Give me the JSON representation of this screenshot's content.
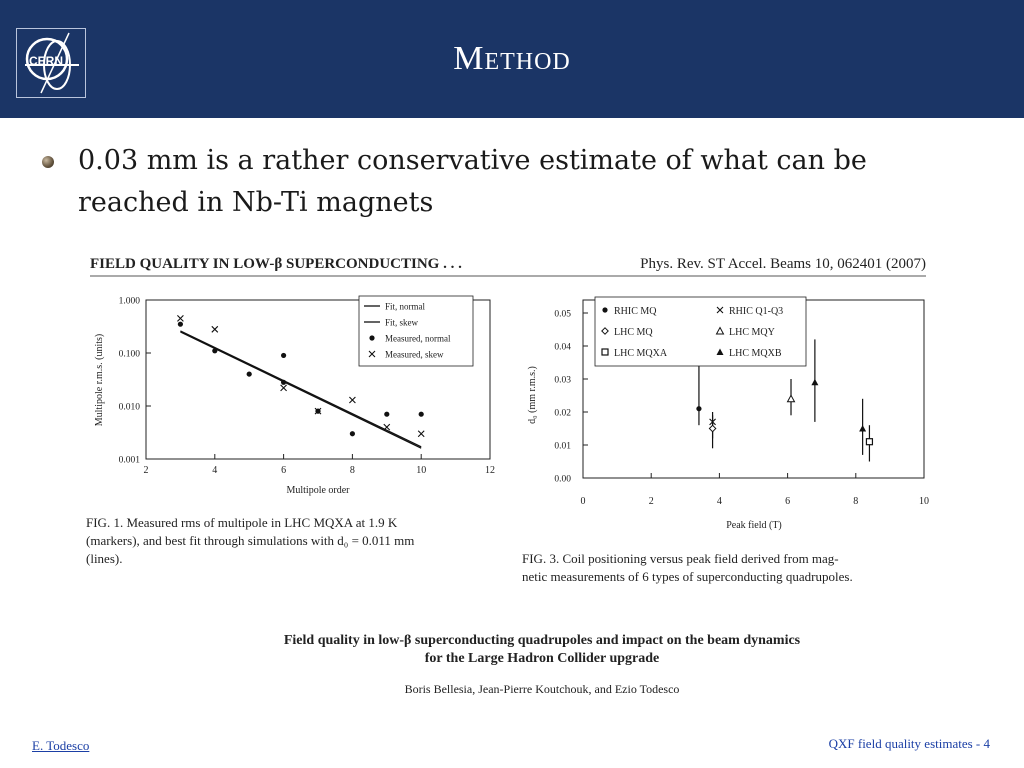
{
  "header": {
    "title": "Method",
    "logo_text": "CERN",
    "background": "#1b3566"
  },
  "bullet": {
    "line1": "0.03 mm is a rather conservative estimate of what can be",
    "line2": "reached in Nb-Ti magnets"
  },
  "paper": {
    "running_head_left": "FIELD QUALITY IN LOW-β SUPERCONDUCTING . . .",
    "running_head_right": "Phys. Rev. ST Accel. Beams 10, 062401 (2007)",
    "fig1_caption": [
      "FIG. 1.   Measured rms of multipole in LHC MQXA at 1.9 K",
      "(markers), and best fit through simulations with d₀ = 0.011 mm",
      "(lines)."
    ],
    "fig3_caption": [
      "FIG. 3.   Coil positioning versus peak field derived from mag-",
      "netic measurements of 6 types of superconducting quadrupoles."
    ],
    "title_line1": "Field quality in low-β superconducting quadrupoles and impact on the beam dynamics",
    "title_line2": "for the Large Hadron Collider upgrade",
    "authors": "Boris Bellesia, Jean-Pierre Koutchouk, and Ezio Todesco"
  },
  "footer": {
    "author": "E. Todesco",
    "page": "QXF field quality estimates - 4"
  },
  "chart_data": [
    {
      "type": "scatter",
      "xlabel": "Multipole order",
      "ylabel": "Multipole r.m.s. (units)",
      "y_scale": "log",
      "xlim": [
        2,
        12
      ],
      "ylim": [
        0.001,
        1
      ],
      "x_ticks": [
        "2",
        "4",
        "6",
        "8",
        "10",
        "12"
      ],
      "y_ticks": [
        "0.001",
        "0.010",
        "0.100",
        "1.000"
      ],
      "legend_position": "top-right",
      "grid": false,
      "series": [
        {
          "name": "Fit, normal",
          "kind": "line",
          "points": [
            [
              3,
              0.25
            ],
            [
              10,
              0.0016
            ]
          ]
        },
        {
          "name": "Fit, skew",
          "kind": "line",
          "points": [
            [
              3,
              0.26
            ],
            [
              10,
              0.0017
            ]
          ]
        },
        {
          "name": "Measured, normal",
          "kind": "marker",
          "marker": "dot",
          "points": [
            [
              3,
              0.35
            ],
            [
              4,
              0.11
            ],
            [
              5,
              0.04
            ],
            [
              6,
              0.09
            ],
            [
              6,
              0.028
            ],
            [
              7,
              0.008
            ],
            [
              8,
              0.003
            ],
            [
              9,
              0.007
            ],
            [
              10,
              0.007
            ]
          ]
        },
        {
          "name": "Measured, skew",
          "kind": "marker",
          "marker": "x",
          "points": [
            [
              3,
              0.45
            ],
            [
              4,
              0.28
            ],
            [
              6,
              0.022
            ],
            [
              7,
              0.008
            ],
            [
              8,
              0.013
            ],
            [
              9,
              0.004
            ],
            [
              10,
              0.003
            ]
          ]
        }
      ]
    },
    {
      "type": "scatter",
      "xlabel": "Peak field (T)",
      "ylabel": "d₀ (mm r.m.s.)",
      "xlim": [
        0,
        10
      ],
      "ylim": [
        0,
        0.05
      ],
      "x_ticks": [
        "0",
        "2",
        "4",
        "6",
        "8",
        "10"
      ],
      "y_ticks": [
        "0.00",
        "0.01",
        "0.02",
        "0.03",
        "0.04",
        "0.05"
      ],
      "legend_position": "top-left",
      "grid": false,
      "series": [
        {
          "name": "RHIC MQ",
          "marker": "dot",
          "points": [
            {
              "x": 3.4,
              "y": 0.021,
              "lo": 0.016,
              "hi": 0.036
            }
          ]
        },
        {
          "name": "RHIC Q1-Q3",
          "marker": "x",
          "points": [
            {
              "x": 3.8,
              "y": 0.017,
              "lo": 0.012,
              "hi": 0.02
            }
          ]
        },
        {
          "name": "LHC MQ",
          "marker": "diamond",
          "points": [
            {
              "x": 3.8,
              "y": 0.015,
              "lo": 0.009,
              "hi": 0.019
            }
          ]
        },
        {
          "name": "LHC MQY",
          "marker": "triangle-open",
          "points": [
            {
              "x": 6.1,
              "y": 0.024,
              "lo": 0.019,
              "hi": 0.03
            }
          ]
        },
        {
          "name": "LHC MQXA",
          "marker": "square",
          "points": [
            {
              "x": 8.4,
              "y": 0.011,
              "lo": 0.005,
              "hi": 0.016
            }
          ]
        },
        {
          "name": "LHC MQXB",
          "marker": "triangle",
          "points": [
            {
              "x": 6.8,
              "y": 0.029,
              "lo": 0.017,
              "hi": 0.042
            },
            {
              "x": 8.2,
              "y": 0.015,
              "lo": 0.007,
              "hi": 0.024
            }
          ]
        }
      ]
    }
  ]
}
